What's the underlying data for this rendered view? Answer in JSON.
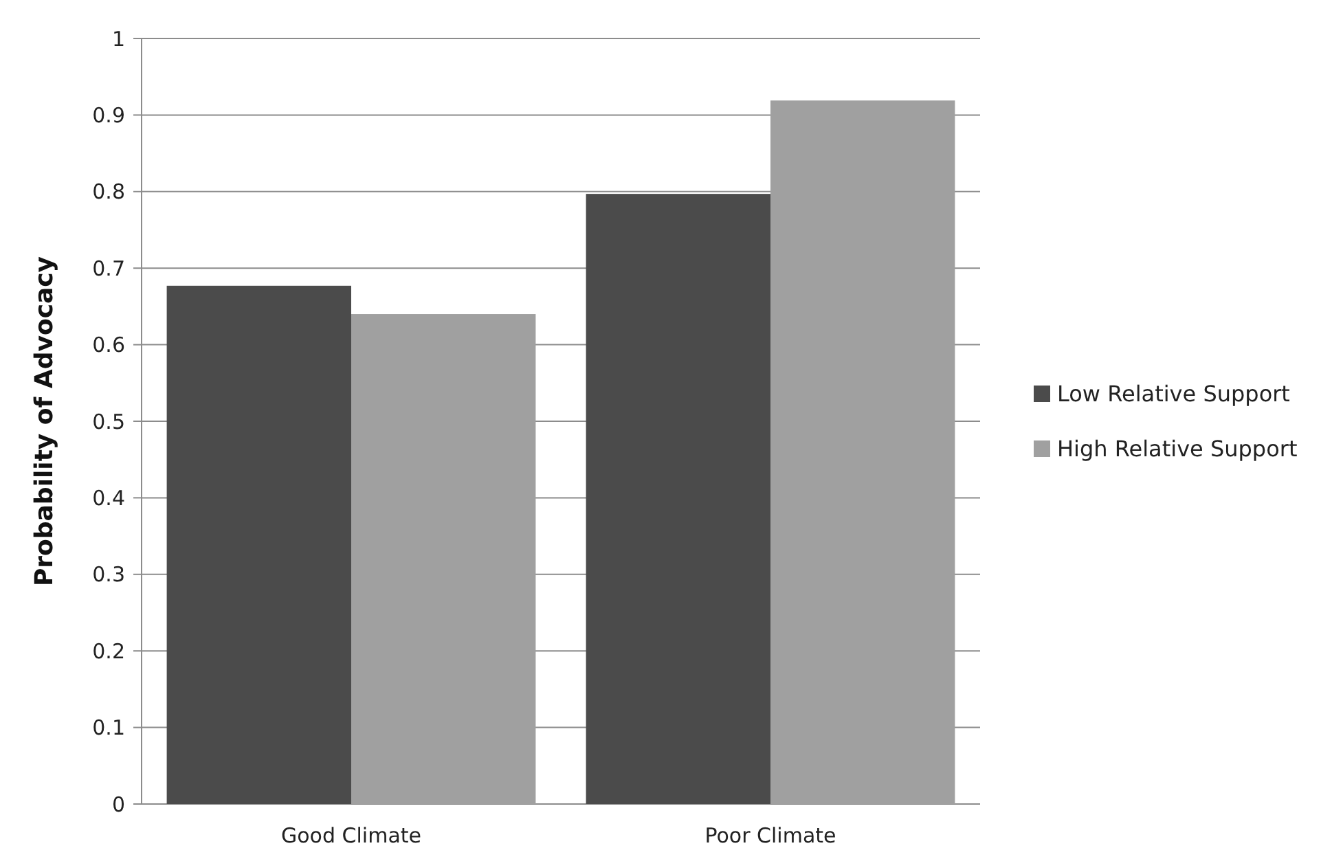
{
  "chart_data": {
    "type": "bar",
    "ylabel": "Probability of Advocacy",
    "categories": [
      "Good Climate",
      "Poor Climate"
    ],
    "series": [
      {
        "name": "Low Relative Support",
        "color": "#4b4b4b",
        "values": [
          0.677,
          0.797
        ]
      },
      {
        "name": "High Relative Support",
        "color": "#a0a0a0",
        "values": [
          0.64,
          0.919
        ]
      }
    ],
    "ylim": [
      0,
      1
    ],
    "yticks": [
      0,
      0.1,
      0.2,
      0.3,
      0.4,
      0.5,
      0.6,
      0.7,
      0.8,
      0.9,
      1
    ],
    "grid": "y",
    "legend": "right"
  }
}
